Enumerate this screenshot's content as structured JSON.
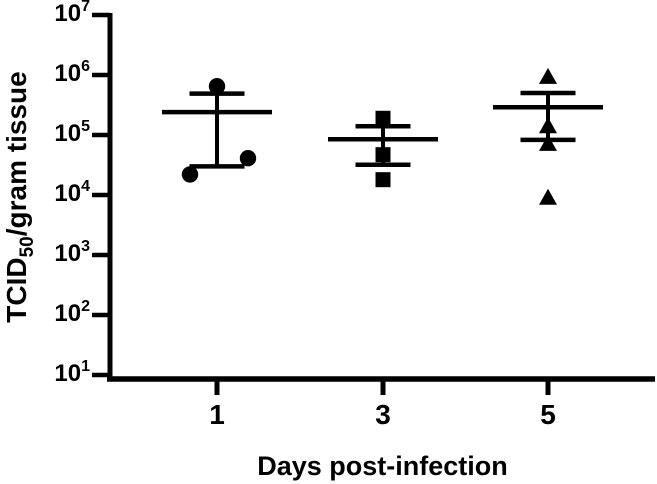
{
  "figure": {
    "background_color": "#ffffff",
    "ink_color": "#000000"
  },
  "chart_data": {
    "type": "scatter",
    "title": "",
    "xlabel": "Days post-infection",
    "ylabel": "TCID50/gram tissue",
    "ylabel_rich": {
      "prefix": "TCID",
      "subscript": "50",
      "suffix": "/gram tissue"
    },
    "yscale": "log10",
    "ylim": [
      10,
      10000000
    ],
    "y_tick_base": "10",
    "y_tick_exponents": [
      7,
      6,
      5,
      4,
      3,
      2,
      1
    ],
    "x_categories": [
      "1",
      "3",
      "5"
    ],
    "grid": false,
    "legend": "none",
    "error_style": "mean +/- SEM",
    "marker_color": "#000000",
    "groups": [
      {
        "category": "1",
        "marker": "circle",
        "points": [
          {
            "value": 650000,
            "jitter_x": 0
          },
          {
            "value": 41000,
            "jitter_x": 31
          },
          {
            "value": 22000,
            "jitter_x": -27
          }
        ],
        "mean": 240000,
        "error_upper": 490000,
        "error_lower": 30000
      },
      {
        "category": "3",
        "marker": "square",
        "points": [
          {
            "value": 190000,
            "jitter_x": 0
          },
          {
            "value": 47000,
            "jitter_x": 0
          },
          {
            "value": 18000,
            "jitter_x": 0
          }
        ],
        "mean": 85000,
        "error_upper": 140000,
        "error_lower": 32000
      },
      {
        "category": "5",
        "marker": "triangle",
        "points": [
          {
            "value": 930000,
            "jitter_x": 0
          },
          {
            "value": 140000,
            "jitter_x": 0
          },
          {
            "value": 71000,
            "jitter_x": 0
          },
          {
            "value": 9000,
            "jitter_x": 0
          }
        ],
        "mean": 290000,
        "error_upper": 500000,
        "error_lower": 83000
      }
    ]
  }
}
